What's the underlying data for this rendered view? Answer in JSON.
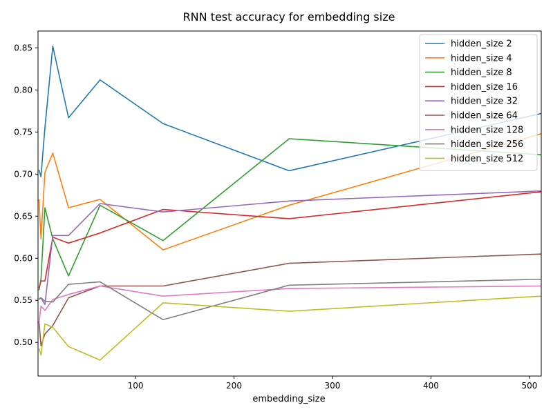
{
  "chart_data": {
    "type": "line",
    "title": "RNN test accuracy for embedding size",
    "xlabel": "embedding_size",
    "ylabel": "",
    "x": [
      2,
      4,
      8,
      16,
      32,
      64,
      128,
      256,
      512
    ],
    "xlim": [
      1,
      512
    ],
    "ylim": [
      0.46,
      0.87
    ],
    "xticks": [
      100,
      200,
      300,
      400,
      500
    ],
    "yticks": [
      0.5,
      0.55,
      0.6,
      0.65,
      0.7,
      0.75,
      0.8,
      0.85
    ],
    "ytick_labels": [
      "0.50",
      "0.55",
      "0.60",
      "0.65",
      "0.70",
      "0.75",
      "0.80",
      "0.85"
    ],
    "grid": false,
    "legend": "top-right",
    "series": [
      {
        "name": "hidden_size 2",
        "color": "#1f77b4",
        "values": [
          0.705,
          0.697,
          0.755,
          0.852,
          0.767,
          0.812,
          0.76,
          0.704,
          0.772
        ]
      },
      {
        "name": "hidden_size 4",
        "color": "#ff7f0e",
        "values": [
          0.67,
          0.623,
          0.702,
          0.725,
          0.66,
          0.67,
          0.61,
          0.663,
          0.748
        ]
      },
      {
        "name": "hidden_size 8",
        "color": "#2ca02c",
        "values": [
          0.562,
          0.575,
          0.66,
          0.623,
          0.579,
          0.663,
          0.621,
          0.742,
          0.723
        ]
      },
      {
        "name": "hidden_size 16",
        "color": "#d62728",
        "values": [
          0.565,
          0.573,
          0.573,
          0.625,
          0.618,
          0.63,
          0.658,
          0.647,
          0.679
        ]
      },
      {
        "name": "hidden_size 32",
        "color": "#9467bd",
        "values": [
          0.551,
          0.553,
          0.545,
          0.627,
          0.627,
          0.665,
          0.655,
          0.668,
          0.68
        ]
      },
      {
        "name": "hidden_size 64",
        "color": "#8c564b",
        "values": [
          0.525,
          0.496,
          0.51,
          0.52,
          0.553,
          0.567,
          0.567,
          0.594,
          0.605
        ]
      },
      {
        "name": "hidden_size 128",
        "color": "#e377c2",
        "values": [
          0.522,
          0.543,
          0.538,
          0.551,
          0.557,
          0.567,
          0.555,
          0.564,
          0.567
        ]
      },
      {
        "name": "hidden_size 256",
        "color": "#7f7f7f",
        "values": [
          0.552,
          0.553,
          0.549,
          0.548,
          0.569,
          0.572,
          0.527,
          0.568,
          0.575
        ]
      },
      {
        "name": "hidden_size 512",
        "color": "#bcbd22",
        "values": [
          0.493,
          0.485,
          0.522,
          0.518,
          0.495,
          0.479,
          0.547,
          0.537,
          0.555
        ]
      }
    ]
  }
}
